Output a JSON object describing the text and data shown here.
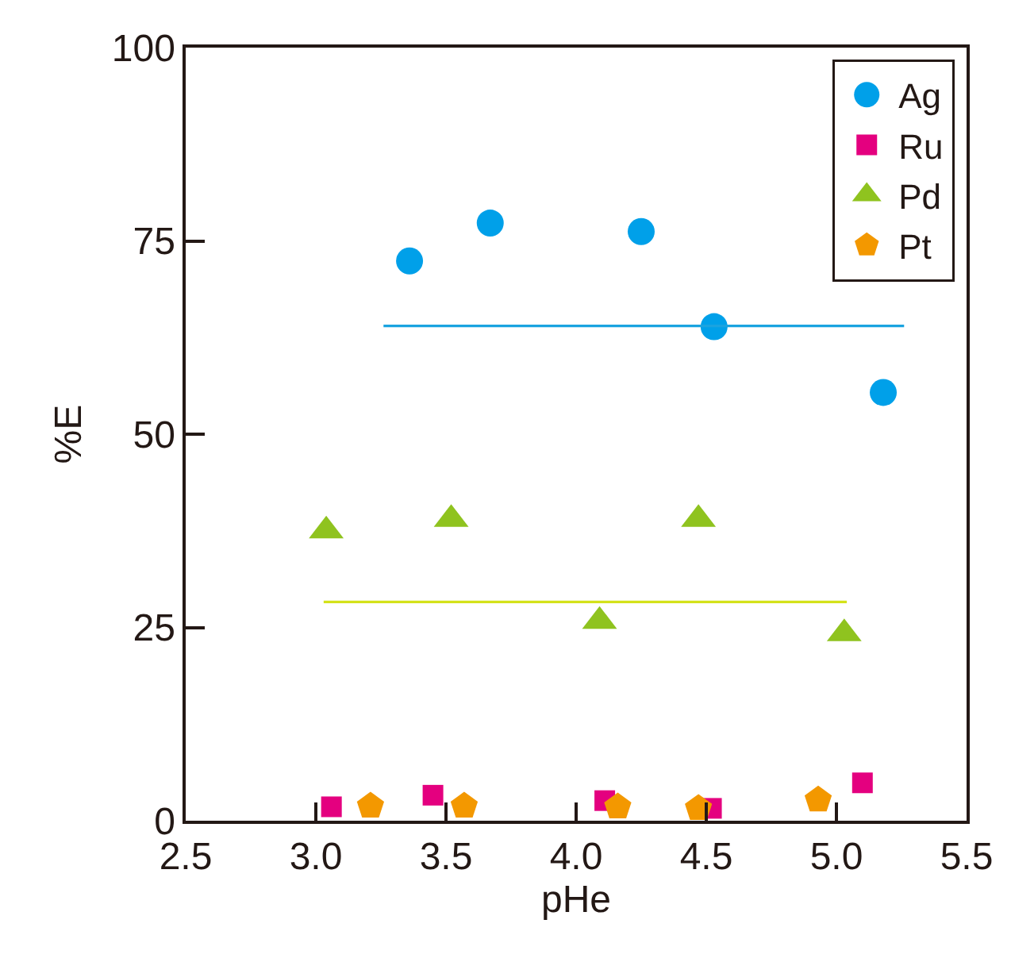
{
  "chart_data": {
    "type": "scatter",
    "xlabel": "pHe",
    "ylabel": "%E",
    "xlim": [
      2.5,
      5.5
    ],
    "xticks": [
      {
        "value": 2.5,
        "label": "2.5"
      },
      {
        "value": 3.0,
        "label": "3.0"
      },
      {
        "value": 3.5,
        "label": "3.5"
      },
      {
        "value": 4.0,
        "label": "4.0"
      },
      {
        "value": 4.5,
        "label": "4.5"
      },
      {
        "value": 5.0,
        "label": "5.0"
      },
      {
        "value": 5.5,
        "label": "5.5"
      }
    ],
    "ylim": [
      0,
      100
    ],
    "yticks": [
      0,
      25,
      50,
      75,
      100
    ],
    "legend": "top right",
    "series": [
      {
        "name": "Ag",
        "color": "#00a0e9",
        "marker": "circle",
        "x": [
          3.36,
          3.67,
          4.25,
          4.53,
          5.18
        ],
        "values": [
          72.4,
          77.3,
          76.2,
          63.9,
          55.4
        ]
      },
      {
        "name": "Ru",
        "color": "#e4007f",
        "marker": "square",
        "x": [
          3.06,
          3.45,
          4.11,
          4.52,
          5.1
        ],
        "values": [
          1.8,
          3.3,
          2.6,
          1.6,
          4.9
        ]
      },
      {
        "name": "Pd",
        "color": "#8fc31f",
        "marker": "triangle",
        "x": [
          3.04,
          3.52,
          4.09,
          4.47,
          5.03
        ],
        "values": [
          37.5,
          39.0,
          25.8,
          39.0,
          24.2
        ]
      },
      {
        "name": "Pt",
        "color": "#f39800",
        "x": [
          3.21,
          3.57,
          4.16,
          4.47,
          4.93
        ],
        "values": [
          1.9,
          1.9,
          1.8,
          1.6,
          2.7
        ]
      },
      {
        "type": "line",
        "color": "#1aa3e0",
        "marker": "none",
        "line_style": "solid",
        "x": [
          3.26,
          5.26
        ],
        "values": [
          64,
          64
        ]
      },
      {
        "type": "line",
        "color": "#d4e21a",
        "marker": "none",
        "line_style": "solid",
        "x": [
          3.03,
          5.04
        ],
        "values": [
          28.3,
          28.3
        ]
      }
    ]
  }
}
